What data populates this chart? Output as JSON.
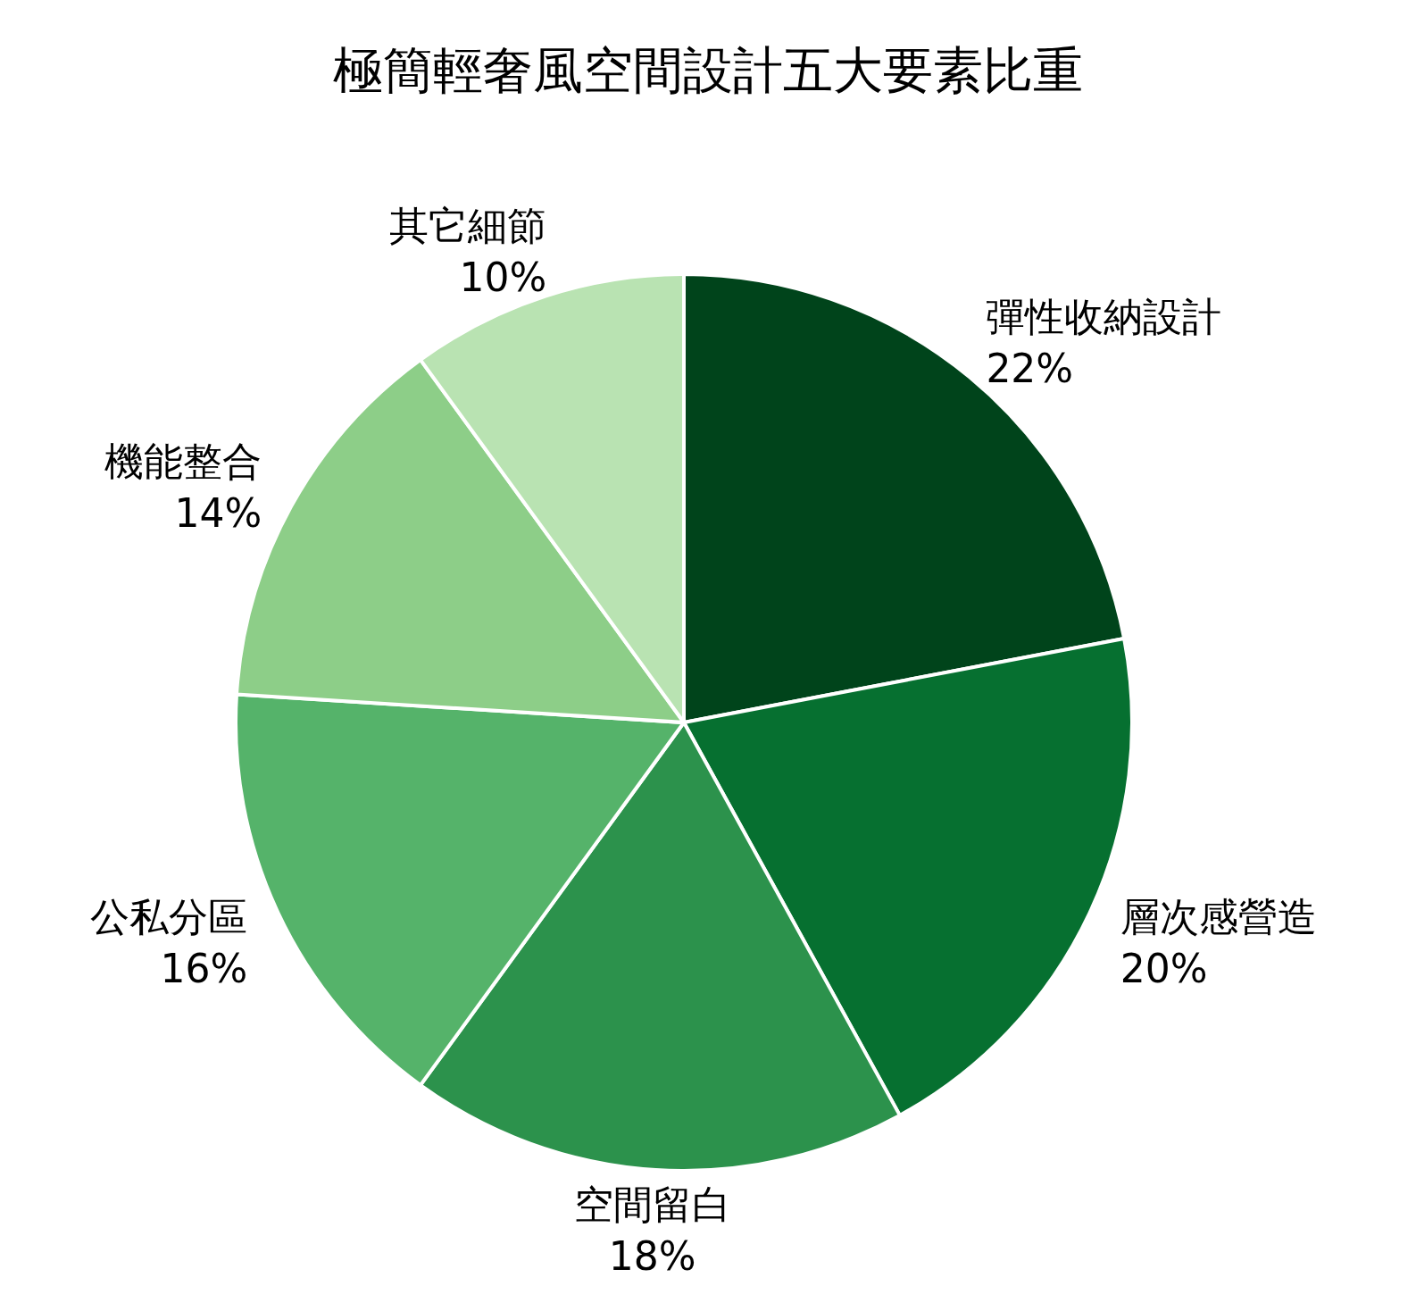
{
  "chart_data": {
    "type": "pie",
    "title": "極簡輕奢風空間設計五大要素比重",
    "categories": [
      "彈性收納設計",
      "層次感營造",
      "空間留白",
      "公私分區",
      "機能整合",
      "其它細節"
    ],
    "values": [
      22,
      20,
      18,
      16,
      14,
      10
    ],
    "value_labels": [
      "22%",
      "20%",
      "18%",
      "16%",
      "14%",
      "10%"
    ],
    "colors": [
      "#00441b",
      "#067030",
      "#2c924c",
      "#55b36a",
      "#8dce88",
      "#b9e3b2"
    ]
  }
}
